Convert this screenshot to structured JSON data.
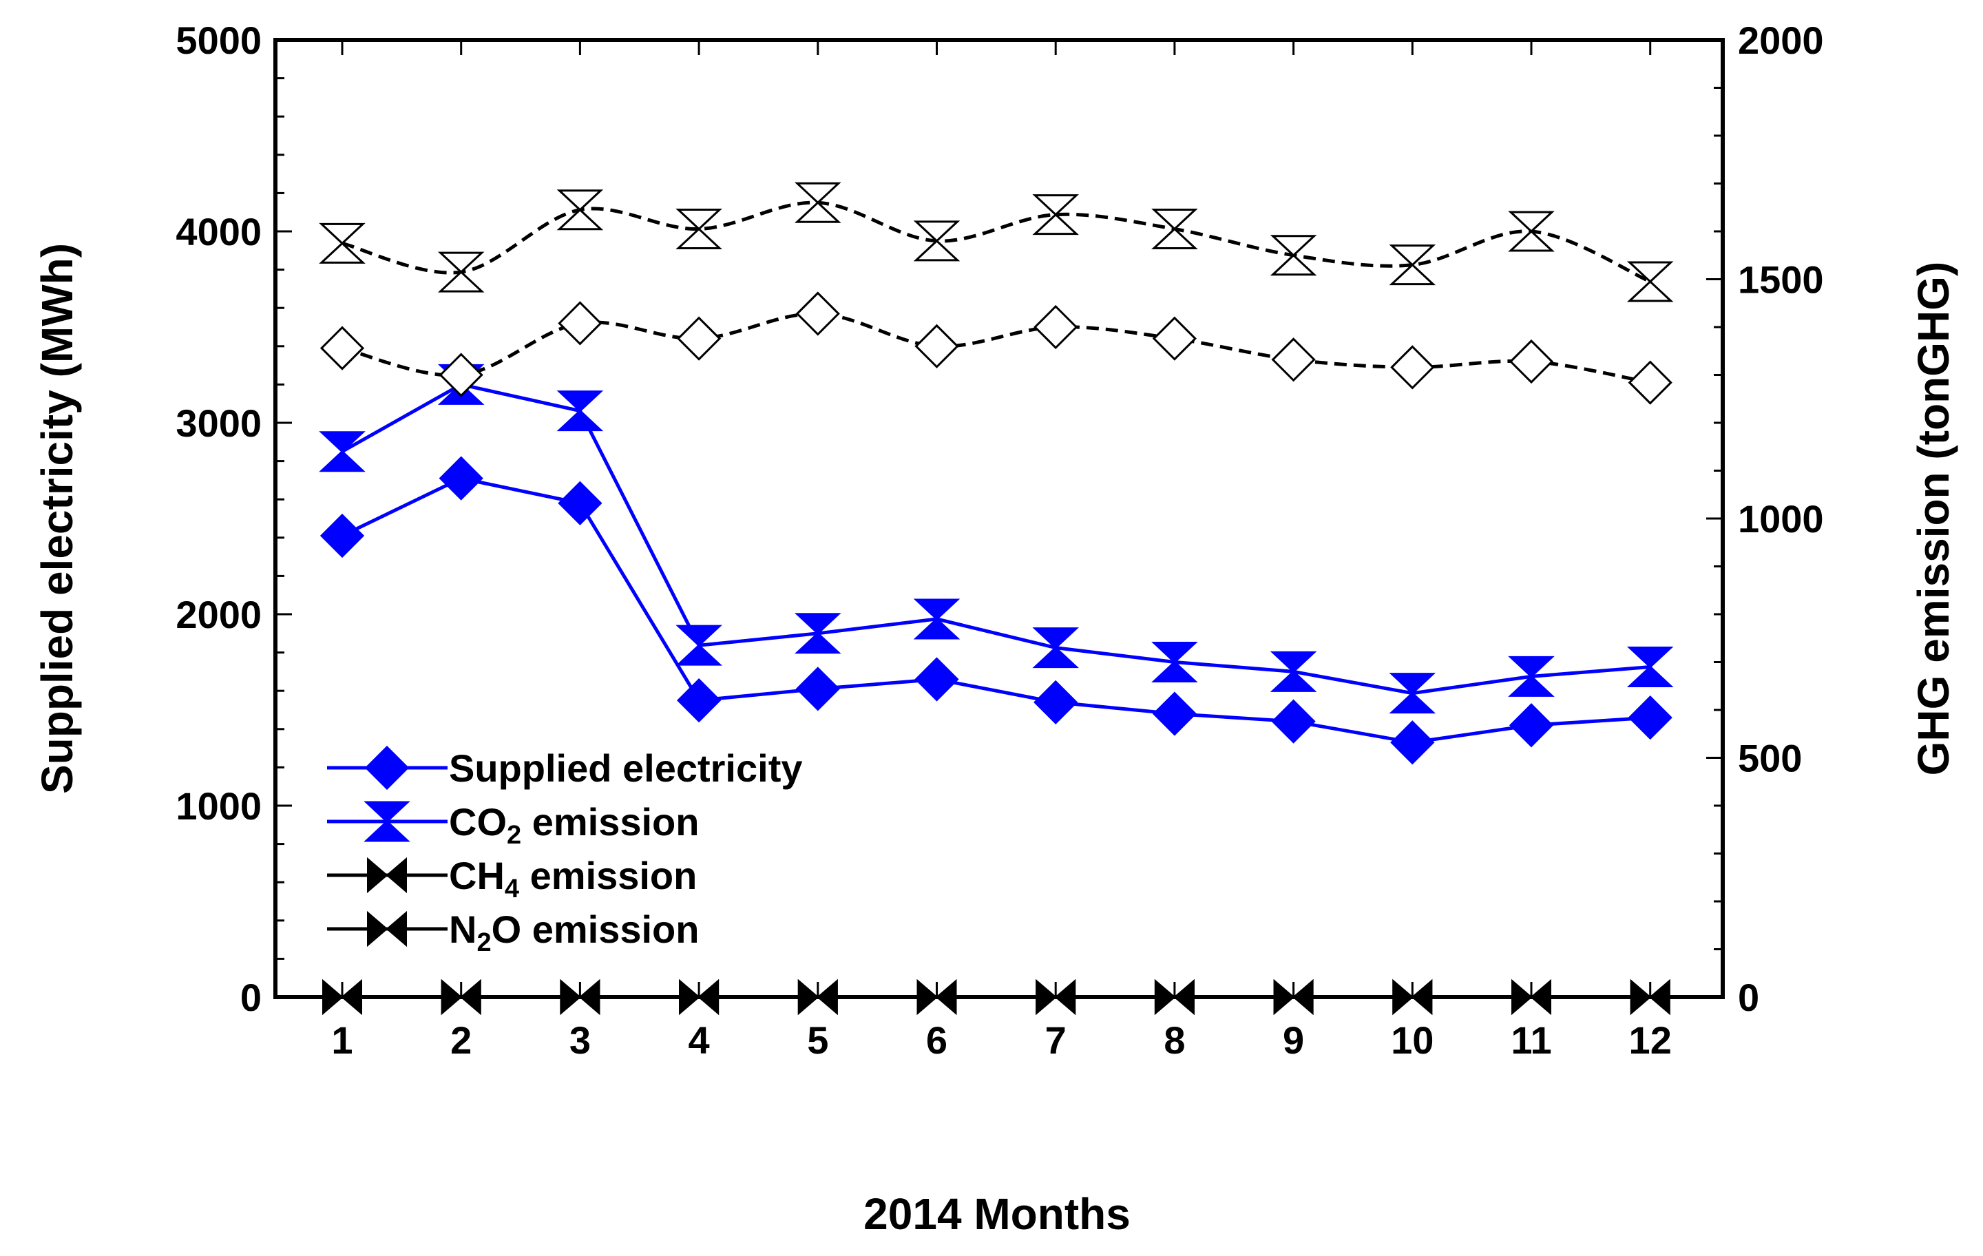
{
  "chart_data": {
    "type": "line",
    "title": "",
    "xlabel": "2014 Months",
    "ylabel": "Supplied electricity (MWh)",
    "y2label": "GHG emission (tonGHG)",
    "categories": [
      "1",
      "2",
      "3",
      "4",
      "5",
      "6",
      "7",
      "8",
      "9",
      "10",
      "11",
      "12"
    ],
    "ylim": [
      0,
      5000
    ],
    "y_ticks": [
      0,
      1000,
      2000,
      3000,
      4000,
      5000
    ],
    "y2lim": [
      0,
      2000
    ],
    "y2_ticks": [
      0,
      500,
      1000,
      1500,
      2000
    ],
    "legend_position": "bottom-left",
    "series": [
      {
        "id": "supplied",
        "name": "Supplied electricity",
        "axis": "left",
        "marker": "diamond-filled",
        "style": "solid",
        "color": "#0000ff",
        "values": [
          2410,
          2710,
          2580,
          1550,
          1610,
          1660,
          1540,
          1480,
          1440,
          1330,
          1420,
          1460
        ]
      },
      {
        "id": "co2",
        "name": "CO2 emission",
        "label_main": "CO",
        "label_sub": "2",
        "label_tail": " emission",
        "axis": "right",
        "marker": "hourglass-filled",
        "style": "solid",
        "color": "#0000ff",
        "values": [
          1140,
          1280,
          1225,
          735,
          760,
          790,
          730,
          700,
          680,
          635,
          670,
          690
        ]
      },
      {
        "id": "ch4",
        "name": "CH4 emission",
        "label_main": "CH",
        "label_sub": "4",
        "label_tail": " emission",
        "axis": "right",
        "marker": "bowtie-filled",
        "style": "solid",
        "color": "#000000",
        "values": [
          0,
          0,
          0,
          0,
          0,
          0,
          0,
          0,
          0,
          0,
          0,
          0
        ]
      },
      {
        "id": "n2o",
        "name": "N2O emission",
        "label_main": "N",
        "label_sub": "2",
        "label_tail": "O emission",
        "axis": "right",
        "marker": "bowtie-filled",
        "style": "solid",
        "color": "#000000",
        "values": [
          0,
          0,
          0,
          0,
          0,
          0,
          0,
          0,
          0,
          0,
          0,
          0
        ]
      },
      {
        "id": "supplied_b",
        "name": "",
        "axis": "left",
        "marker": "diamond-open",
        "style": "dashed",
        "color": "#000000",
        "values": [
          3390,
          3250,
          3520,
          3440,
          3570,
          3400,
          3500,
          3440,
          3330,
          3290,
          3320,
          3210
        ]
      },
      {
        "id": "ghg_b",
        "name": "",
        "axis": "right",
        "marker": "hourglass-open",
        "style": "dashed",
        "color": "#000000",
        "values": [
          1575,
          1515,
          1645,
          1605,
          1660,
          1580,
          1635,
          1605,
          1550,
          1530,
          1600,
          1495
        ]
      }
    ]
  }
}
